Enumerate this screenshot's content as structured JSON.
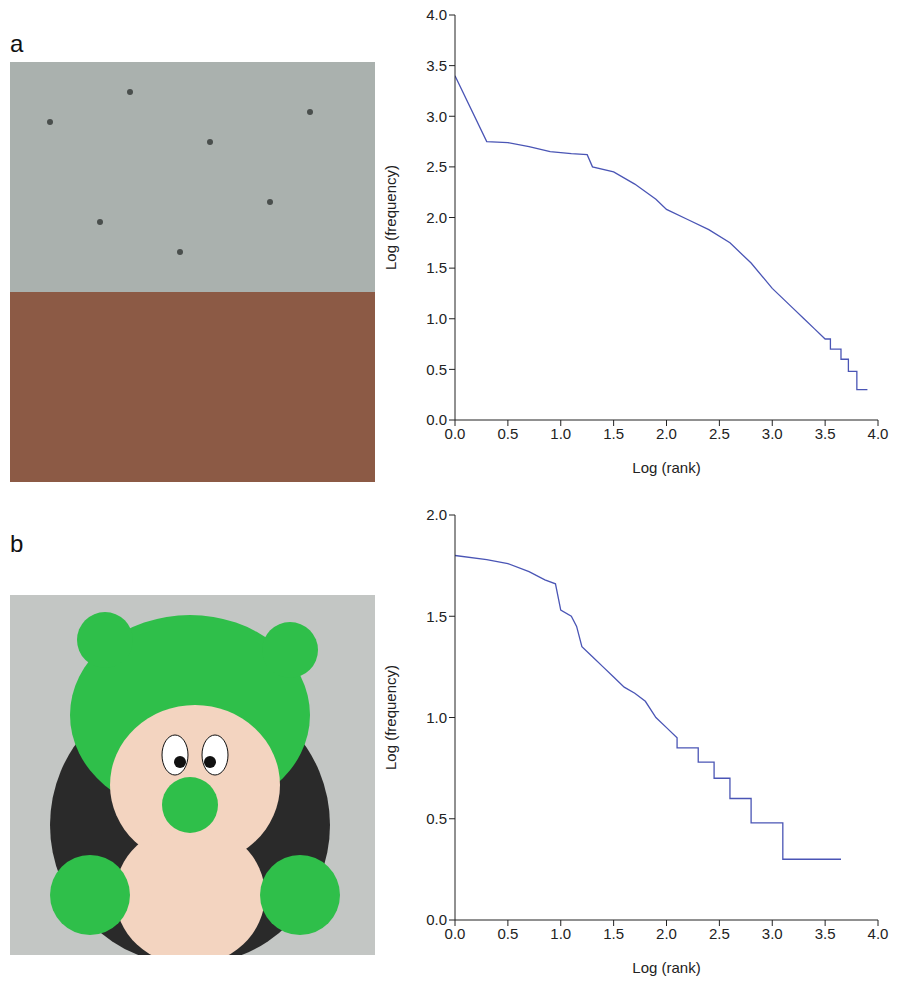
{
  "chart_data": [
    {
      "type": "line",
      "panel": "a",
      "x_label": "Log (rank)",
      "y_label": "Log (frequency)",
      "xlim": [
        0,
        4
      ],
      "ylim": [
        0,
        4
      ],
      "xticks": [
        {
          "value": 0,
          "label": "0.0"
        },
        {
          "value": 0.5,
          "label": "0.5"
        },
        {
          "value": 1,
          "label": "1.0"
        },
        {
          "value": 1.5,
          "label": "1.5"
        },
        {
          "value": 2,
          "label": "2.0"
        },
        {
          "value": 2.5,
          "label": "2.5"
        },
        {
          "value": 3,
          "label": "3.0"
        },
        {
          "value": 3.5,
          "label": "3.5"
        },
        {
          "value": 4,
          "label": "4.0"
        }
      ],
      "yticks": [
        {
          "value": 0,
          "label": "0.0"
        },
        {
          "value": 0.5,
          "label": "0.5"
        },
        {
          "value": 1,
          "label": "1.0"
        },
        {
          "value": 1.5,
          "label": "1.5"
        },
        {
          "value": 2,
          "label": "2.0"
        },
        {
          "value": 2.5,
          "label": "2.5"
        },
        {
          "value": 3,
          "label": "3.0"
        },
        {
          "value": 3.5,
          "label": "3.5"
        },
        {
          "value": 4,
          "label": "4.0"
        }
      ],
      "color": "#4a55b5",
      "grid": false,
      "x": [
        0,
        0.3,
        0.5,
        0.7,
        0.9,
        1.1,
        1.25,
        1.3,
        1.5,
        1.7,
        1.9,
        2.0,
        2.2,
        2.4,
        2.6,
        2.8,
        3.0,
        3.2,
        3.3,
        3.4,
        3.5,
        3.55,
        3.55,
        3.65,
        3.65,
        3.72,
        3.72,
        3.8,
        3.8,
        3.9
      ],
      "values": [
        3.4,
        2.75,
        2.74,
        2.7,
        2.65,
        2.63,
        2.62,
        2.5,
        2.45,
        2.33,
        2.18,
        2.08,
        1.98,
        1.88,
        1.75,
        1.55,
        1.3,
        1.1,
        1.0,
        0.9,
        0.8,
        0.8,
        0.7,
        0.7,
        0.6,
        0.6,
        0.48,
        0.48,
        0.3,
        0.3
      ]
    },
    {
      "type": "line",
      "panel": "b",
      "x_label": "Log (rank)",
      "y_label": "Log (frequency)",
      "xlim": [
        0,
        4
      ],
      "ylim": [
        0,
        2
      ],
      "xticks": [
        {
          "value": 0,
          "label": "0.0"
        },
        {
          "value": 0.5,
          "label": "0.5"
        },
        {
          "value": 1,
          "label": "1.0"
        },
        {
          "value": 1.5,
          "label": "1.5"
        },
        {
          "value": 2,
          "label": "2.0"
        },
        {
          "value": 2.5,
          "label": "2.5"
        },
        {
          "value": 3,
          "label": "3.0"
        },
        {
          "value": 3.5,
          "label": "3.5"
        },
        {
          "value": 4,
          "label": "4.0"
        }
      ],
      "yticks": [
        {
          "value": 0,
          "label": "0.0"
        },
        {
          "value": 0.5,
          "label": "0.5"
        },
        {
          "value": 1,
          "label": "1.0"
        },
        {
          "value": 1.5,
          "label": "1.5"
        },
        {
          "value": 2,
          "label": "2.0"
        }
      ],
      "color": "#4a55b5",
      "grid": false,
      "x": [
        0,
        0.3,
        0.5,
        0.7,
        0.85,
        0.95,
        1.0,
        1.1,
        1.15,
        1.2,
        1.3,
        1.4,
        1.5,
        1.6,
        1.7,
        1.8,
        1.9,
        2.0,
        2.1,
        2.1,
        2.3,
        2.3,
        2.45,
        2.45,
        2.6,
        2.6,
        2.8,
        2.8,
        3.1,
        3.1,
        3.65
      ],
      "values": [
        1.8,
        1.78,
        1.76,
        1.72,
        1.68,
        1.66,
        1.53,
        1.5,
        1.45,
        1.35,
        1.3,
        1.25,
        1.2,
        1.15,
        1.12,
        1.08,
        1.0,
        0.95,
        0.9,
        0.85,
        0.85,
        0.78,
        0.78,
        0.7,
        0.7,
        0.6,
        0.6,
        0.48,
        0.48,
        0.3,
        0.3
      ]
    }
  ]
}
